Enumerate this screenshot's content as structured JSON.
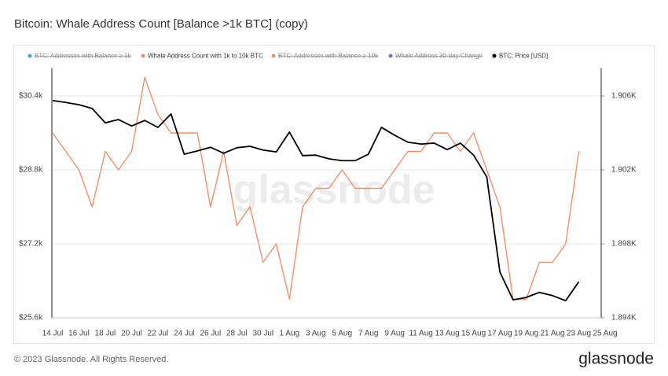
{
  "chart_data": {
    "type": "line",
    "title": "Bitcoin: Whale Address Count [Balance >1k BTC] (copy)",
    "watermark": "glassnode",
    "footer": "© 2023 Glassnode. All Rights Reserved.",
    "logo": "glassnode",
    "legend": [
      {
        "name": "BTC: Addresses with Balance ≥ 1k",
        "color": "#4a9fd8",
        "hidden": true
      },
      {
        "name": "Whale Address Count with 1k to 10k BTC",
        "color": "#f0906c",
        "hidden": false
      },
      {
        "name": "BTC: Addresses with Balance ≥ 10k",
        "color": "#f0906c",
        "hidden": true
      },
      {
        "name": "Whale Address 30-day Change",
        "color": "#7b6fc8",
        "hidden": true
      },
      {
        "name": "BTC: Price [USD]",
        "color": "#000000",
        "hidden": false
      }
    ],
    "categories": [
      "14 Jul",
      null,
      "16 Jul",
      null,
      "18 Jul",
      null,
      "20 Jul",
      null,
      "22 Jul",
      null,
      "24 Jul",
      null,
      "26 Jul",
      null,
      "28 Jul",
      null,
      "30 Jul",
      null,
      "1 Aug",
      null,
      "3 Aug",
      null,
      "5 Aug",
      null,
      "7 Aug",
      null,
      "9 Aug",
      null,
      "11 Aug",
      null,
      "13 Aug",
      null,
      "15 Aug",
      null,
      "17 Aug",
      null,
      "19 Aug",
      null,
      "21 Aug",
      null,
      "23 Aug",
      null,
      "25 Aug"
    ],
    "series": [
      {
        "name": "Whale Address Count with 1k to 10k BTC",
        "color": "#f0906c",
        "axis": "y2",
        "values": [
          1904,
          1903,
          1902,
          1900,
          1903,
          1902,
          1903,
          1907,
          1905,
          1904,
          1904,
          1904,
          1900,
          1903,
          1899,
          1900,
          1897,
          1898,
          1895,
          1900,
          1901,
          1901,
          1902,
          1901,
          1901,
          1901,
          1902,
          1903,
          1903,
          1904,
          1904,
          1903,
          1904,
          1902,
          1900,
          1895,
          1895,
          1897,
          1897,
          1898,
          1903,
          null,
          null
        ]
      },
      {
        "name": "BTC: Price [USD]",
        "color": "#000000",
        "axis": "y",
        "values": [
          30300,
          30260,
          30210,
          30130,
          29820,
          29890,
          29750,
          29870,
          29720,
          30010,
          29140,
          29210,
          29290,
          29160,
          29280,
          29310,
          29230,
          29190,
          29620,
          29110,
          29120,
          29040,
          29000,
          29000,
          29140,
          29720,
          29550,
          29400,
          29360,
          29380,
          29240,
          29380,
          29120,
          28650,
          26590,
          25990,
          26040,
          26150,
          26080,
          25970,
          26380,
          null,
          null
        ]
      }
    ],
    "ylim": [
      25600,
      31000
    ],
    "yticks": [
      {
        "value": 25600,
        "label": "$25.6k"
      },
      {
        "value": 27200,
        "label": "$27.2k"
      },
      {
        "value": 28800,
        "label": "$28.8k"
      },
      {
        "value": 30400,
        "label": "$30.4k"
      }
    ],
    "y2lim": [
      1894,
      1907.5
    ],
    "y2ticks": [
      {
        "value": 1894,
        "label": "1.894K"
      },
      {
        "value": 1898,
        "label": "1.898K"
      },
      {
        "value": 1902,
        "label": "1.902K"
      },
      {
        "value": 1906,
        "label": "1.906K"
      }
    ],
    "grid": true
  }
}
